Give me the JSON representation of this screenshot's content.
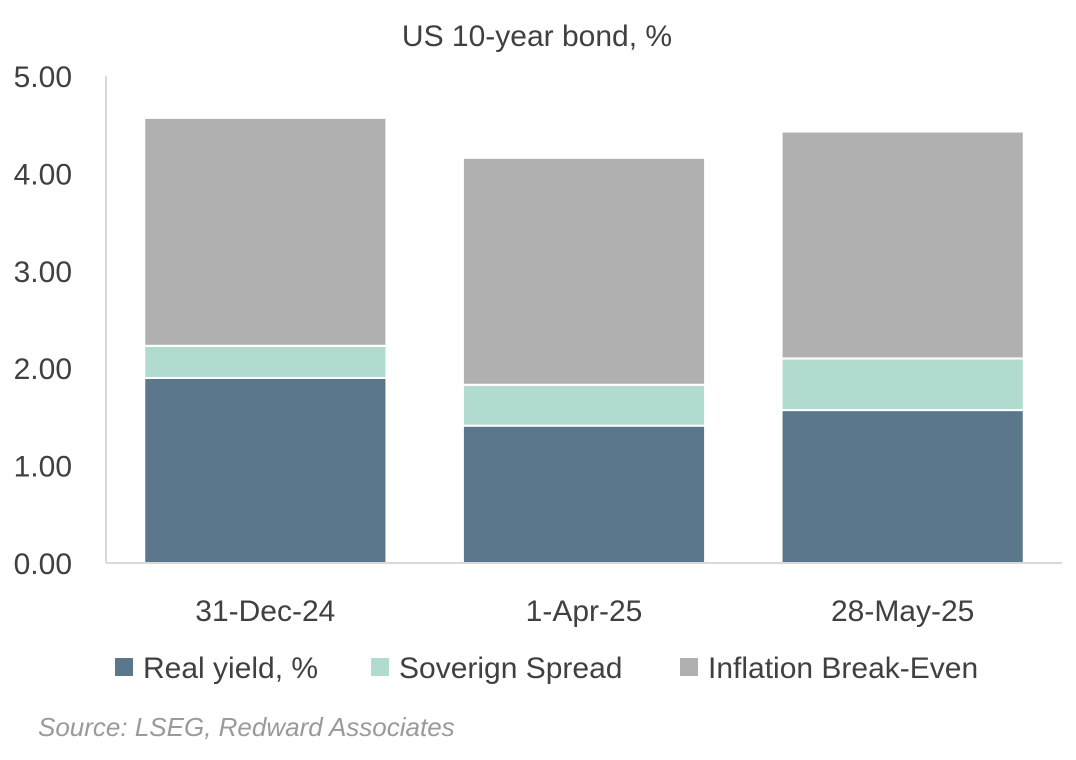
{
  "chart_data": {
    "type": "bar",
    "stacked": true,
    "title": "US 10-year bond, %",
    "xlabel": "",
    "ylabel": "",
    "ylim": [
      0,
      5
    ],
    "yticks": [
      "0.00",
      "1.00",
      "2.00",
      "3.00",
      "4.00",
      "5.00"
    ],
    "grid": false,
    "legend_position": "bottom",
    "categories": [
      "31-Dec-24",
      "1-Apr-25",
      "28-May-25"
    ],
    "series": [
      {
        "name": "Real yield, %",
        "color": "#5a778b",
        "values": [
          1.9,
          1.41,
          1.57
        ]
      },
      {
        "name": "Soverign Spread",
        "color": "#b2dbcf",
        "values": [
          0.33,
          0.42,
          0.53
        ]
      },
      {
        "name": "Inflation Break-Even",
        "color": "#b0b0b0",
        "values": [
          2.34,
          2.33,
          2.33
        ]
      }
    ],
    "source": "Source: LSEG, Redward Associates"
  }
}
